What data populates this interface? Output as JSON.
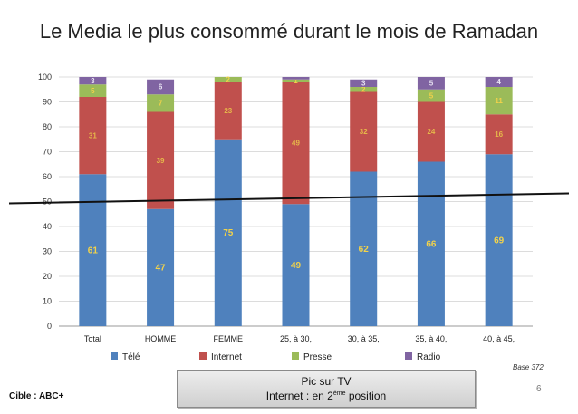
{
  "title": "Le Media le plus consommé durant le mois de Ramadan",
  "chart_data": {
    "type": "bar",
    "stacked": true,
    "categories": [
      "Total",
      "HOMME",
      "FEMME",
      "25, à 30,",
      "30, à 35,",
      "35, à 40,",
      "40, à 45,"
    ],
    "series": [
      {
        "name": "Télé",
        "values": [
          61,
          47,
          75,
          49,
          62,
          66,
          69
        ],
        "color": "#4f81bd"
      },
      {
        "name": "Internet",
        "values": [
          31,
          39,
          23,
          49,
          32,
          24,
          16
        ],
        "color": "#c0504d"
      },
      {
        "name": "Presse",
        "values": [
          5,
          7,
          2,
          1,
          2,
          5,
          11
        ],
        "color": "#9bbb59"
      },
      {
        "name": "Radio",
        "values": [
          3,
          6,
          0,
          1,
          3,
          5,
          4
        ],
        "color": "#8064a2"
      }
    ],
    "labels": [
      [
        "61",
        "47",
        "75",
        "49",
        "62",
        "66",
        "69"
      ],
      [
        "31",
        "39",
        "23",
        "49",
        "32",
        "24",
        "16"
      ],
      [
        "5",
        "7",
        "2",
        "1",
        "2",
        "5",
        "11"
      ],
      [
        "3",
        "6",
        "",
        "",
        "3",
        "5",
        "4"
      ]
    ],
    "ylim": [
      0,
      100
    ],
    "yticks": [
      0,
      10,
      20,
      30,
      40,
      50,
      60,
      70,
      80,
      90,
      100
    ],
    "reference_line": 50,
    "grid": true,
    "legend_position": "bottom"
  },
  "base_note": "Base 372",
  "cible": "Cible : ABC+",
  "callout": {
    "line1": "Pic sur TV",
    "line2_pre": "Internet : en 2",
    "line2_sup": "ème",
    "line2_post": " position"
  },
  "page_number": "6"
}
